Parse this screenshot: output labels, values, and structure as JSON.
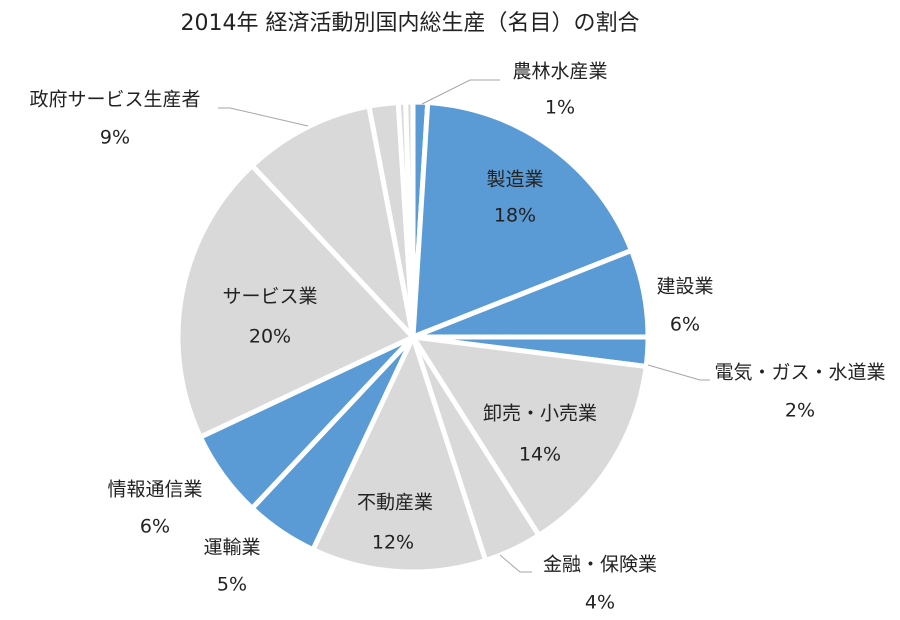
{
  "chart_data": {
    "type": "pie",
    "title": "2014年 経済活動別国内総生産（名目）の割合",
    "categories": [
      "農林水産業",
      "製造業",
      "建設業",
      "電気・ガス・水道業",
      "卸売・小売業",
      "金融・保険業",
      "不動産業",
      "運輸業",
      "情報通信業",
      "サービス業",
      "政府サービス生産者",
      null,
      null,
      null
    ],
    "values": [
      1,
      18,
      6,
      2,
      14,
      4,
      12,
      5,
      6,
      20,
      9,
      2,
      0.5,
      0.5
    ],
    "value_labels": [
      "1%",
      "18%",
      "6%",
      "2%",
      "14%",
      "4%",
      "12%",
      "5%",
      "6%",
      "20%",
      "9%",
      null,
      null,
      null
    ],
    "colors": [
      "#5b9bd5",
      "#5b9bd5",
      "#5b9bd5",
      "#5b9bd5",
      "#d9d9d9",
      "#d9d9d9",
      "#d9d9d9",
      "#5b9bd5",
      "#5b9bd5",
      "#d9d9d9",
      "#d9d9d9",
      "#d9d9d9",
      "#d9d9d9",
      "#d9d9d9"
    ]
  }
}
